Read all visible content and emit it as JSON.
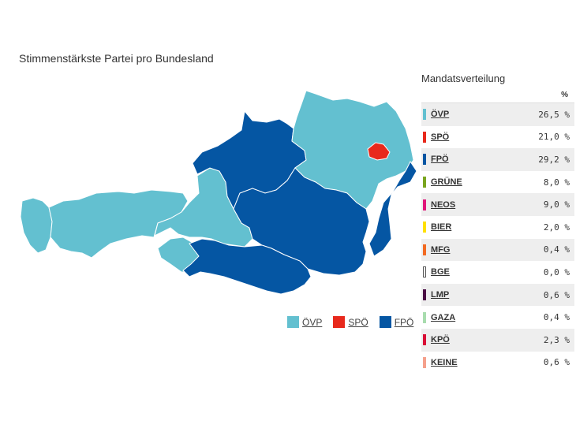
{
  "map": {
    "title": "Stimmenstärkste Partei pro Bundesland",
    "colors": {
      "oevp": "#63c0d0",
      "spoe": "#e8291c",
      "fpoe": "#0556a3"
    },
    "regions": [
      {
        "name": "Vorarlberg",
        "winner": "oevp"
      },
      {
        "name": "Tirol",
        "winner": "oevp"
      },
      {
        "name": "Osttirol",
        "winner": "oevp"
      },
      {
        "name": "Salzburg",
        "winner": "oevp"
      },
      {
        "name": "Oberösterreich",
        "winner": "fpoe"
      },
      {
        "name": "Niederösterreich",
        "winner": "oevp"
      },
      {
        "name": "Wien",
        "winner": "spoe"
      },
      {
        "name": "Burgenland",
        "winner": "fpoe"
      },
      {
        "name": "Steiermark",
        "winner": "fpoe"
      },
      {
        "name": "Kärnten",
        "winner": "fpoe"
      }
    ]
  },
  "legend": [
    {
      "label": "ÖVP",
      "color": "#63c0d0"
    },
    {
      "label": "SPÖ",
      "color": "#e8291c"
    },
    {
      "label": "FPÖ",
      "color": "#0556a3"
    }
  ],
  "panel": {
    "title": "Mandatsverteilung",
    "pct_header": "%",
    "rows": [
      {
        "party": "ÖVP",
        "value": "26,5 %",
        "color": "#63c0d0"
      },
      {
        "party": "SPÖ",
        "value": "21,0 %",
        "color": "#e8291c"
      },
      {
        "party": "FPÖ",
        "value": "29,2 %",
        "color": "#0556a3"
      },
      {
        "party": "GRÜNE",
        "value": "8,0 %",
        "color": "#7aa51f"
      },
      {
        "party": "NEOS",
        "value": "9,0 %",
        "color": "#e0167a"
      },
      {
        "party": "BIER",
        "value": "2,0 %",
        "color": "#ffe000"
      },
      {
        "party": "MFG",
        "value": "0,4 %",
        "color": "#f26a22"
      },
      {
        "party": "BGE",
        "value": "0,0 %",
        "color": "#ffffff",
        "border": "#555555"
      },
      {
        "party": "LMP",
        "value": "0,6 %",
        "color": "#4a0d44"
      },
      {
        "party": "GAZA",
        "value": "0,4 %",
        "color": "#a8dcae"
      },
      {
        "party": "KPÖ",
        "value": "2,3 %",
        "color": "#d90f36"
      },
      {
        "party": "KEINE",
        "value": "0,6 %",
        "color": "#f5a08c"
      }
    ]
  },
  "chart_data": [
    {
      "type": "map",
      "title": "Stimmenstärkste Partei pro Bundesland",
      "legend": [
        "ÖVP",
        "SPÖ",
        "FPÖ"
      ],
      "values": {
        "Vorarlberg": "ÖVP",
        "Tirol": "ÖVP",
        "Salzburg": "ÖVP",
        "Oberösterreich": "FPÖ",
        "Niederösterreich": "ÖVP",
        "Wien": "SPÖ",
        "Burgenland": "FPÖ",
        "Steiermark": "FPÖ",
        "Kärnten": "FPÖ"
      }
    },
    {
      "type": "table",
      "title": "Mandatsverteilung",
      "categories": [
        "ÖVP",
        "SPÖ",
        "FPÖ",
        "GRÜNE",
        "NEOS",
        "BIER",
        "MFG",
        "BGE",
        "LMP",
        "GAZA",
        "KPÖ",
        "KEINE"
      ],
      "values": [
        26.5,
        21.0,
        29.2,
        8.0,
        9.0,
        2.0,
        0.4,
        0.0,
        0.6,
        0.4,
        2.3,
        0.6
      ]
    }
  ]
}
